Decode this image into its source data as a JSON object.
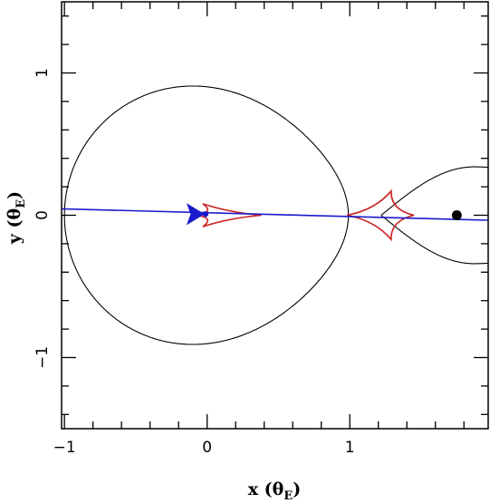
{
  "chart_data": {
    "type": "line",
    "title": "",
    "xlabel": {
      "main": "x (θ",
      "sub": "E",
      "close": ")"
    },
    "ylabel": {
      "main": "y (θ",
      "sub": "E",
      "close": ")"
    },
    "xlim": [
      -1.02,
      1.97
    ],
    "ylim": [
      -1.5,
      1.5
    ],
    "x_ticks_major": [
      -1,
      0,
      1
    ],
    "x_tick_labels": [
      "−1",
      "0",
      "1"
    ],
    "y_ticks_major": [
      -1,
      0,
      1
    ],
    "y_tick_labels": [
      "−1",
      "0",
      "1"
    ],
    "grid": false,
    "legend": "none",
    "colors": {
      "critical_curve": "#000000",
      "caustic": "#cc2222",
      "trajectory": "#1a1acc",
      "source": "#1a1acc",
      "lens_mass": "#000000"
    },
    "critical_curve": {
      "primary_loop": {
        "cusp_x": 0.99,
        "left_x": -1.0,
        "center_x": -0.1,
        "max_y": 0.91
      },
      "secondary_loop": {
        "cusp_x": 1.22,
        "right_x": 1.97,
        "max_y": 0.34,
        "max_at_x": 1.87
      }
    },
    "caustics": [
      {
        "name": "central caustic",
        "cusps": [
          [
            -0.08,
            0.0
          ],
          [
            -0.03,
            0.08
          ],
          [
            0.38,
            0.0
          ],
          [
            -0.03,
            -0.08
          ]
        ]
      },
      {
        "name": "planetary caustic",
        "cusps": [
          [
            0.98,
            0.0
          ],
          [
            1.29,
            0.17
          ],
          [
            1.45,
            0.0
          ],
          [
            1.29,
            -0.17
          ]
        ]
      }
    ],
    "source_trajectory": {
      "x": [
        -1.02,
        1.97
      ],
      "y": [
        0.045,
        -0.035
      ]
    },
    "source_position": {
      "x": -0.1,
      "y": 0.008
    },
    "lens_mass": {
      "x": 1.75,
      "y": 0.0
    }
  }
}
